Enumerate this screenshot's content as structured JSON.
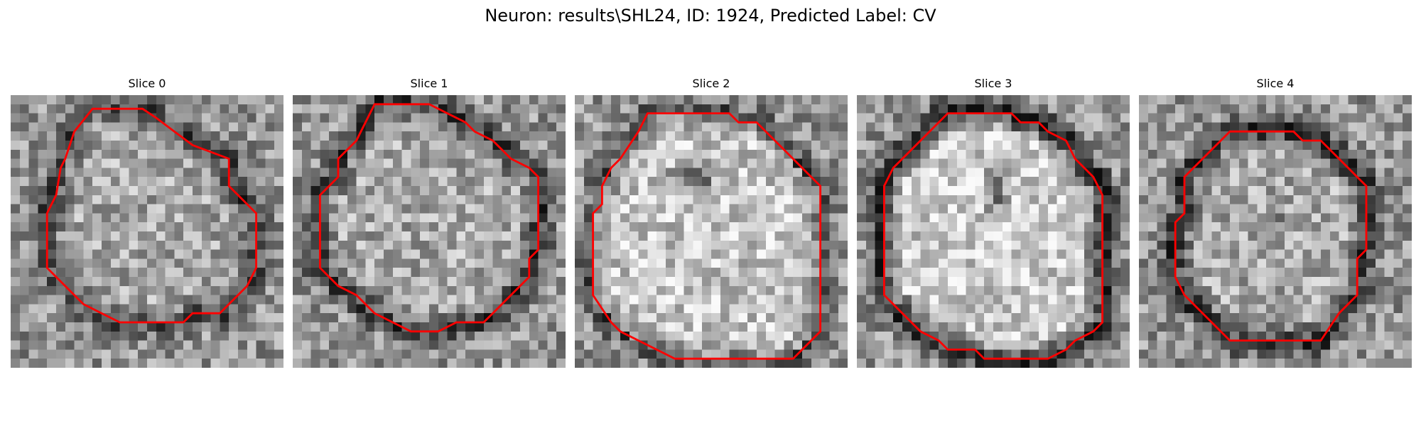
{
  "figure": {
    "title": "Neuron: results\\SHL24, ID: 1924, Predicted Label: CV"
  },
  "panels": [
    {
      "title": "Slice 0",
      "seed": 11,
      "dark_blob": null,
      "rim_dark": 0.35
    },
    {
      "title": "Slice 1",
      "seed": 23,
      "dark_blob": null,
      "rim_dark": 0.4
    },
    {
      "title": "Slice 2",
      "seed": 37,
      "dark_blob": "upper-left",
      "rim_dark": 0.3
    },
    {
      "title": "Slice 3",
      "seed": 49,
      "dark_blob": "center-vertical",
      "rim_dark": 0.55
    },
    {
      "title": "Slice 4",
      "seed": 61,
      "dark_blob": "center-vertical-faint",
      "rim_dark": 0.45
    }
  ],
  "colors": {
    "contour": "#ff0000",
    "colormap": "gray"
  }
}
